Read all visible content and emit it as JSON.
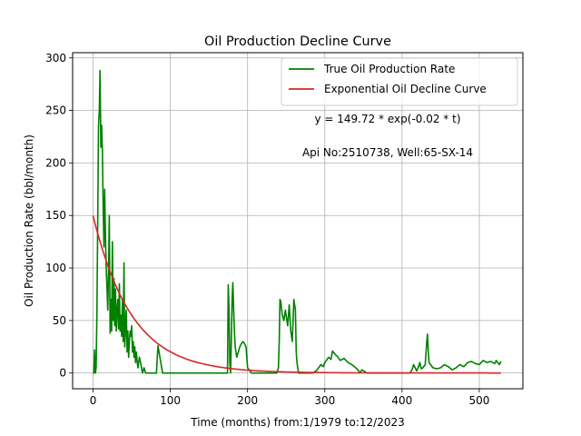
{
  "chart_data": {
    "type": "line",
    "title": "Oil Production Decline Curve",
    "xlabel": "Time (months) from:1/1979 to:12/2023",
    "ylabel": "Oil Production Rate (bbl/month)",
    "xlim": [
      -26.5,
      556.5
    ],
    "ylim": [
      -15,
      305
    ],
    "xticks": [
      0,
      100,
      200,
      300,
      400,
      500
    ],
    "yticks": [
      0,
      50,
      100,
      150,
      200,
      250,
      300
    ],
    "grid": true,
    "legend_position": "top-right",
    "annotations": [
      "y = 149.72 * exp(-0.02 * t)",
      "Api No:2510738, Well:65-SX-14"
    ],
    "series": [
      {
        "name": "True Oil Production Rate",
        "color": "#008000",
        "x": [
          0,
          1,
          2,
          3,
          4,
          5,
          6,
          7,
          8,
          9,
          10,
          11,
          12,
          13,
          14,
          15,
          16,
          17,
          18,
          19,
          20,
          21,
          22,
          23,
          24,
          25,
          26,
          27,
          28,
          29,
          30,
          31,
          32,
          33,
          34,
          35,
          36,
          37,
          38,
          39,
          40,
          41,
          42,
          43,
          44,
          45,
          46,
          47,
          48,
          49,
          50,
          51,
          52,
          53,
          54,
          55,
          56,
          57,
          58,
          60,
          62,
          64,
          66,
          68,
          70,
          72,
          74,
          76,
          78,
          80,
          82,
          84,
          90,
          100,
          120,
          140,
          160,
          170,
          174,
          175,
          176,
          177,
          178,
          179,
          180,
          181,
          182,
          183,
          184,
          185,
          186,
          188,
          190,
          192,
          194,
          196,
          198,
          200,
          205,
          210,
          220,
          230,
          238,
          240,
          241,
          242,
          243,
          245,
          247,
          249,
          250,
          252,
          254,
          256,
          258,
          260,
          262,
          263,
          264,
          265,
          266,
          267,
          270,
          275,
          280,
          285,
          290,
          292,
          295,
          298,
          300,
          302,
          305,
          308,
          310,
          313,
          316,
          320,
          325,
          330,
          335,
          340,
          343,
          345,
          348,
          350,
          355,
          370,
          390,
          410,
          413,
          415,
          417,
          419,
          421,
          423,
          425,
          427,
          430,
          432,
          433,
          434,
          435,
          437,
          440,
          445,
          450,
          455,
          460,
          465,
          470,
          475,
          480,
          485,
          490,
          495,
          500,
          505,
          510,
          515,
          520,
          522,
          524,
          526,
          528
        ],
        "y": [
          0,
          0,
          22,
          0,
          5,
          60,
          150,
          235,
          250,
          288,
          215,
          236,
          212,
          160,
          120,
          175,
          130,
          100,
          80,
          60,
          100,
          150,
          38,
          70,
          40,
          125,
          50,
          90,
          45,
          80,
          40,
          60,
          70,
          42,
          85,
          40,
          55,
          35,
          70,
          30,
          105,
          25,
          45,
          60,
          20,
          40,
          15,
          30,
          40,
          35,
          45,
          20,
          30,
          15,
          25,
          10,
          20,
          12,
          5,
          15,
          8,
          0,
          5,
          0,
          0,
          0,
          0,
          0,
          0,
          0,
          0,
          26,
          0,
          0,
          0,
          0,
          0,
          0,
          0,
          84,
          60,
          10,
          0,
          30,
          70,
          86,
          60,
          40,
          25,
          20,
          15,
          20,
          25,
          28,
          30,
          28,
          25,
          5,
          0,
          0,
          0,
          0,
          0,
          5,
          30,
          70,
          68,
          55,
          50,
          60,
          55,
          45,
          65,
          40,
          30,
          70,
          60,
          20,
          10,
          5,
          0,
          0,
          0,
          0,
          0,
          0,
          3,
          5,
          8,
          6,
          10,
          12,
          15,
          13,
          21,
          18,
          16,
          12,
          14,
          10,
          8,
          5,
          3,
          0,
          3,
          2,
          0,
          0,
          0,
          0,
          3,
          8,
          5,
          2,
          5,
          10,
          4,
          5,
          8,
          30,
          37,
          20,
          10,
          8,
          5,
          4,
          5,
          8,
          6,
          3,
          5,
          8,
          6,
          10,
          11,
          9,
          8,
          12,
          10,
          11,
          9,
          12,
          10,
          8,
          11
        ]
      },
      {
        "name": "Exponential Oil Decline Curve",
        "color": "#d62728",
        "function": "y = 149.72 * exp(-0.02 * t)",
        "x_range": [
          0,
          528
        ]
      }
    ]
  }
}
